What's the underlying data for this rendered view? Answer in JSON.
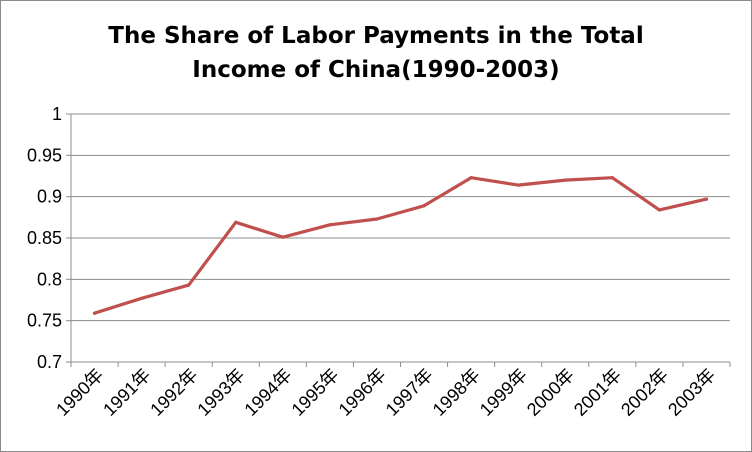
{
  "chart_data": {
    "type": "line",
    "title_line1": "The Share of Labor Payments in the Total",
    "title_line2": "Income of China(1990-2003)",
    "categories": [
      "1990年",
      "1991年",
      "1992年",
      "1993年",
      "1994年",
      "1995年",
      "1996年",
      "1997年",
      "1998年",
      "1999年",
      "2000年",
      "2001年",
      "2002年",
      "2003年"
    ],
    "series": [
      {
        "values": [
          0.759,
          0.777,
          0.793,
          0.869,
          0.851,
          0.866,
          0.873,
          0.889,
          0.923,
          0.914,
          0.92,
          0.923,
          0.884,
          0.897
        ]
      }
    ],
    "ylim": [
      0.7,
      1
    ],
    "yticks": [
      "0.7",
      "0.75",
      "0.8",
      "0.85",
      "0.9",
      "0.95",
      "1"
    ],
    "grid": true,
    "legend": "none",
    "line_color": "#c0504d"
  }
}
